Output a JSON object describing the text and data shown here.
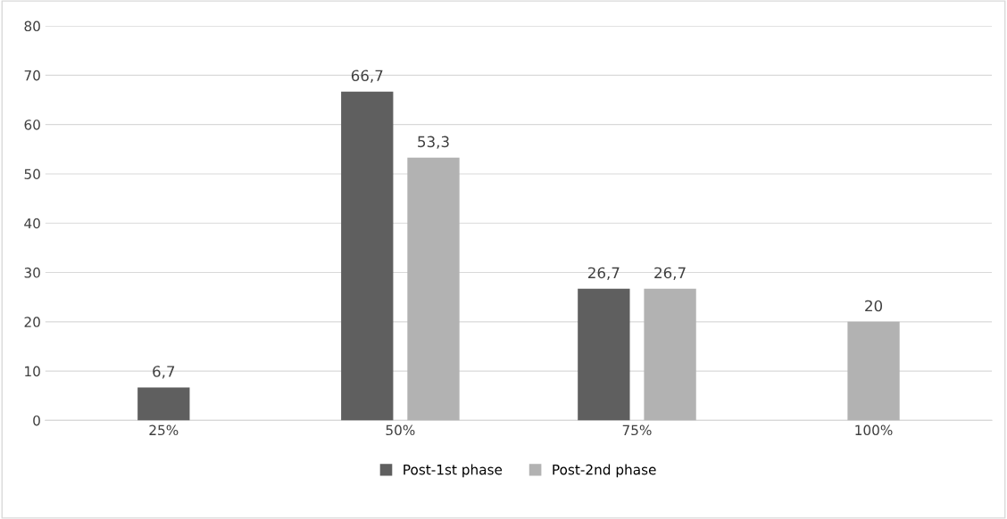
{
  "chart_data": {
    "type": "bar",
    "categories": [
      "25%",
      "50%",
      "75%",
      "100%"
    ],
    "series": [
      {
        "name": "Post-1st phase",
        "color": "#5f5f5f",
        "values": [
          6.7,
          66.7,
          26.7,
          null
        ],
        "value_labels": [
          "6,7",
          "66,7",
          "26,7",
          null
        ]
      },
      {
        "name": "Post-2nd phase",
        "color": "#b2b2b2",
        "values": [
          null,
          53.3,
          26.7,
          20
        ],
        "value_labels": [
          null,
          "53,3",
          "26,7",
          "20"
        ]
      }
    ],
    "ylim": [
      0,
      80
    ],
    "yticks": [
      0,
      10,
      20,
      30,
      40,
      50,
      60,
      70,
      80
    ],
    "grid": "y",
    "legend": "bottom"
  }
}
